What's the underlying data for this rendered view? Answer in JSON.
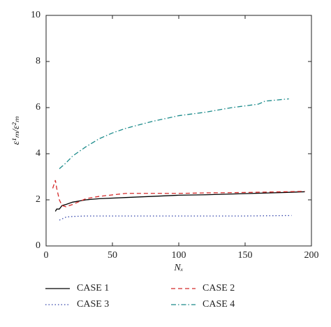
{
  "chart_data": {
    "type": "line",
    "xlabel": "Nₓ",
    "ylabel": "ε¹ₘ/ε²ₘ",
    "xlim": [
      0,
      200
    ],
    "xticks": [
      0,
      50,
      100,
      150,
      200
    ],
    "ylim": [
      0,
      10
    ],
    "yticks": [
      0,
      2,
      4,
      6,
      8,
      10
    ],
    "series": [
      {
        "name": "CASE 1",
        "color": "#000000",
        "dash": "none",
        "x": [
          7,
          8,
          10,
          12,
          15,
          20,
          30,
          40,
          60,
          80,
          100,
          120,
          150,
          180,
          195
        ],
        "values": [
          1.5,
          1.6,
          1.6,
          1.75,
          1.8,
          1.9,
          2.0,
          2.05,
          2.1,
          2.15,
          2.2,
          2.22,
          2.27,
          2.32,
          2.35
        ]
      },
      {
        "name": "CASE 2",
        "color": "#d42a2a",
        "dash": "6 4",
        "x": [
          5,
          7,
          8,
          10,
          12,
          15,
          20,
          30,
          40,
          60,
          80,
          100,
          120,
          150,
          180,
          195
        ],
        "values": [
          2.5,
          2.85,
          2.5,
          2.0,
          1.75,
          1.7,
          1.8,
          2.05,
          2.15,
          2.28,
          2.28,
          2.28,
          2.3,
          2.32,
          2.35,
          2.37
        ]
      },
      {
        "name": "CASE 3",
        "color": "#3344aa",
        "dash": "1.5 3",
        "x": [
          10,
          15,
          20,
          30,
          50,
          100,
          150,
          185
        ],
        "values": [
          1.12,
          1.25,
          1.28,
          1.3,
          1.3,
          1.3,
          1.3,
          1.32
        ]
      },
      {
        "name": "CASE 4",
        "color": "#1a8a8a",
        "dash": "7 3 1.5 3",
        "x": [
          10,
          15,
          20,
          25,
          30,
          40,
          50,
          60,
          80,
          100,
          120,
          140,
          160,
          165,
          183
        ],
        "values": [
          3.35,
          3.6,
          3.9,
          4.1,
          4.3,
          4.65,
          4.9,
          5.1,
          5.4,
          5.65,
          5.8,
          6.0,
          6.15,
          6.28,
          6.38
        ]
      }
    ]
  }
}
